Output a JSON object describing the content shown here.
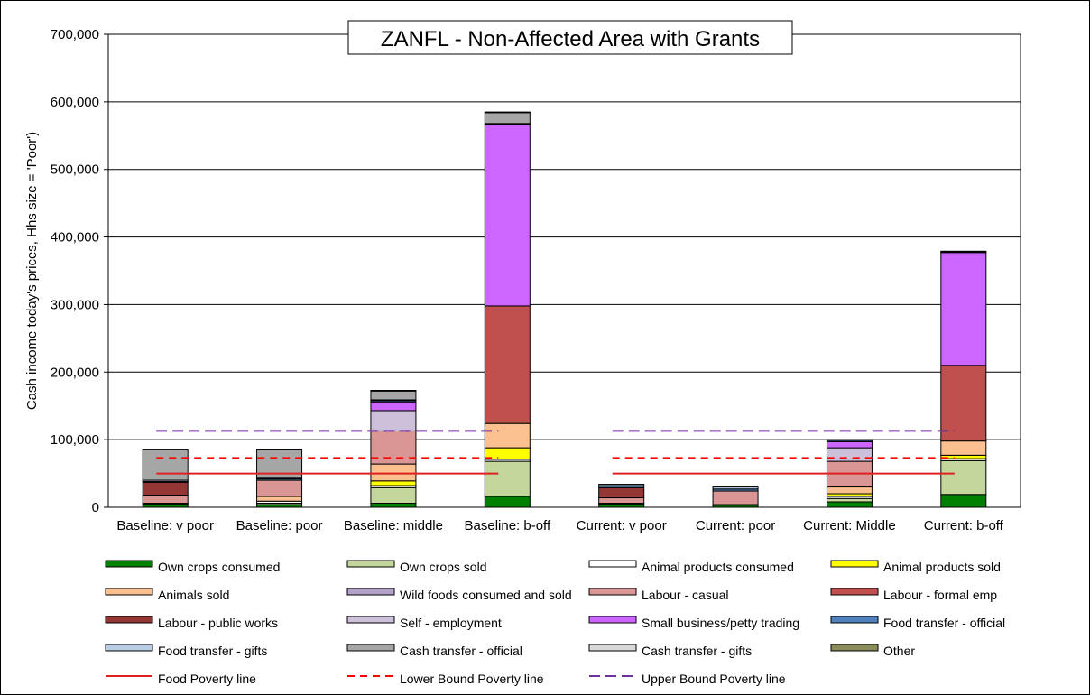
{
  "chart_data": {
    "type": "bar",
    "stacked": true,
    "title": "ZANFL - Non-Affected Area with Grants",
    "xlabel": "",
    "ylabel": "Cash income today's prices, Hhs size = 'Poor')",
    "ylim": [
      0,
      700000
    ],
    "yticks": [
      "0",
      "100,000",
      "200,000",
      "300,000",
      "400,000",
      "500,000",
      "600,000",
      "700,000"
    ],
    "ytick_values": [
      0,
      100000,
      200000,
      300000,
      400000,
      500000,
      600000,
      700000
    ],
    "grid": true,
    "legend_position": "bottom",
    "categories": [
      "Baseline: v poor",
      "Baseline: poor",
      "Baseline: middle",
      "Baseline: b-off",
      "Current: v poor",
      "Current: poor",
      "Current: Middle",
      "Current: b-off"
    ],
    "series": [
      {
        "name": "Own crops consumed",
        "color": "#008000",
        "values": [
          5000,
          4000,
          6000,
          16000,
          5000,
          3000,
          8000,
          19000
        ]
      },
      {
        "name": "Own crops sold",
        "color": "#c3d69b",
        "values": [
          0,
          2000,
          23000,
          52000,
          0,
          0,
          5000,
          50000
        ]
      },
      {
        "name": "Animal products consumed",
        "color": "#ffffff",
        "values": [
          1000,
          3000,
          3000,
          3000,
          1000,
          1000,
          3000,
          3000
        ]
      },
      {
        "name": "Animal products sold",
        "color": "#ffff00",
        "values": [
          0,
          0,
          7000,
          17000,
          0,
          0,
          4000,
          5000
        ]
      },
      {
        "name": "Animals sold",
        "color": "#fac090",
        "values": [
          0,
          7000,
          25000,
          36000,
          0,
          0,
          10000,
          21000
        ]
      },
      {
        "name": "Wild foods consumed and sold",
        "color": "#b3a2c7",
        "values": [
          0,
          0,
          0,
          0,
          0,
          0,
          0,
          0
        ]
      },
      {
        "name": "Labour - casual",
        "color": "#d99694",
        "values": [
          12000,
          24000,
          49000,
          0,
          8000,
          20000,
          38000,
          0
        ]
      },
      {
        "name": "Labour - formal emp",
        "color": "#c0504d",
        "values": [
          0,
          0,
          0,
          174000,
          0,
          0,
          0,
          112000
        ]
      },
      {
        "name": "Labour - public works",
        "color": "#943634",
        "values": [
          19000,
          0,
          0,
          0,
          15000,
          0,
          0,
          0
        ]
      },
      {
        "name": "Self - employment",
        "color": "#ccc0da",
        "values": [
          0,
          0,
          30000,
          0,
          0,
          0,
          20000,
          0
        ]
      },
      {
        "name": "Small business/petty trading",
        "color": "#cc66ff",
        "values": [
          0,
          0,
          13000,
          268000,
          0,
          0,
          9000,
          167000
        ]
      },
      {
        "name": "Food transfer - official",
        "color": "#4f81bd",
        "values": [
          1000,
          2000,
          2000,
          1000,
          3000,
          3000,
          2000,
          1000
        ]
      },
      {
        "name": "Food transfer - gifts",
        "color": "#b9cde5",
        "values": [
          2000,
          1000,
          1000,
          1000,
          2000,
          3000,
          1000,
          1000
        ]
      },
      {
        "name": "Cash transfer - official",
        "color": "#a6a6a6",
        "values": [
          45000,
          42000,
          13000,
          16000,
          0,
          0,
          0,
          0
        ]
      },
      {
        "name": "Cash transfer - gifts",
        "color": "#d9d9d9",
        "values": [
          0,
          1000,
          1000,
          1000,
          0,
          0,
          0,
          0
        ]
      },
      {
        "name": "Other",
        "color": "#8c8c5a",
        "values": [
          0,
          0,
          0,
          0,
          0,
          0,
          0,
          0
        ]
      }
    ],
    "lines": [
      {
        "name": "Food Poverty line",
        "color": "#e02020",
        "style": "solid",
        "value": 50000,
        "segments": [
          [
            0,
            3
          ],
          [
            4,
            7
          ]
        ]
      },
      {
        "name": "Lower Bound Poverty line",
        "color": "#ff0000",
        "style": "dashed",
        "value": 73000,
        "segments": [
          [
            0,
            3
          ],
          [
            4,
            7
          ]
        ]
      },
      {
        "name": "Upper Bound Poverty line",
        "color": "#7030a0",
        "style": "longdash",
        "value": 113000,
        "segments": [
          [
            0,
            3
          ],
          [
            4,
            7
          ]
        ]
      }
    ]
  }
}
